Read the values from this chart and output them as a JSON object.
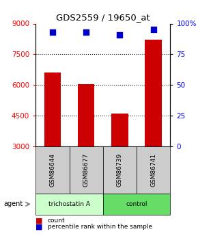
{
  "title": "GDS2559 / 19650_at",
  "samples": [
    "GSM86644",
    "GSM86677",
    "GSM86739",
    "GSM86741"
  ],
  "counts": [
    6600,
    6050,
    4600,
    8200
  ],
  "percentiles": [
    93,
    93,
    91,
    95
  ],
  "ylim_left": [
    3000,
    9000
  ],
  "ylim_right": [
    0,
    100
  ],
  "yticks_left": [
    3000,
    4500,
    6000,
    7500,
    9000
  ],
  "yticks_right": [
    0,
    25,
    50,
    75,
    100
  ],
  "ytick_labels_right": [
    "0",
    "25",
    "50",
    "75",
    "100%"
  ],
  "gridlines": [
    4500,
    6000,
    7500
  ],
  "bar_color": "#cc0000",
  "dot_color": "#0000cc",
  "agent_labels": [
    "trichostatin A",
    "control"
  ],
  "agent_groups": [
    2,
    2
  ],
  "trichostatin_color": "#ccffcc",
  "control_color": "#66dd66",
  "sample_box_color": "#cccccc",
  "background_color": "#ffffff",
  "bar_width": 0.5
}
